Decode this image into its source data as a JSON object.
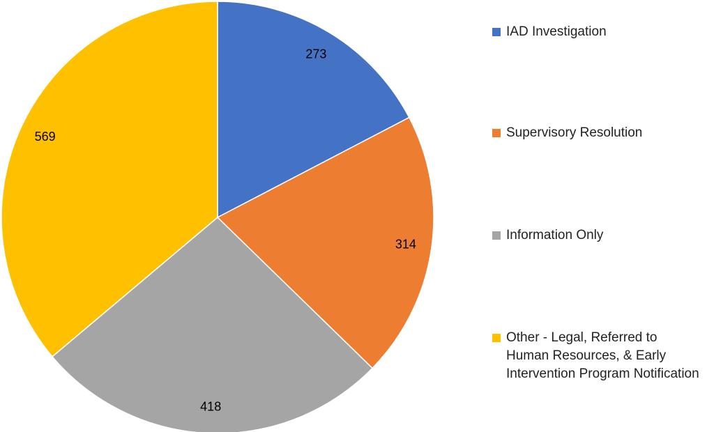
{
  "chart_data": {
    "type": "pie",
    "categories": [
      "IAD Investigation",
      "Supervisory Resolution",
      "Information Only",
      "Other - Legal, Referred to Human Resources, & Early Intervention Program Notification"
    ],
    "values": [
      273,
      314,
      418,
      569
    ],
    "colors": [
      "#4472c4",
      "#ed7d31",
      "#a5a5a5",
      "#ffc000"
    ],
    "legend": "right"
  }
}
